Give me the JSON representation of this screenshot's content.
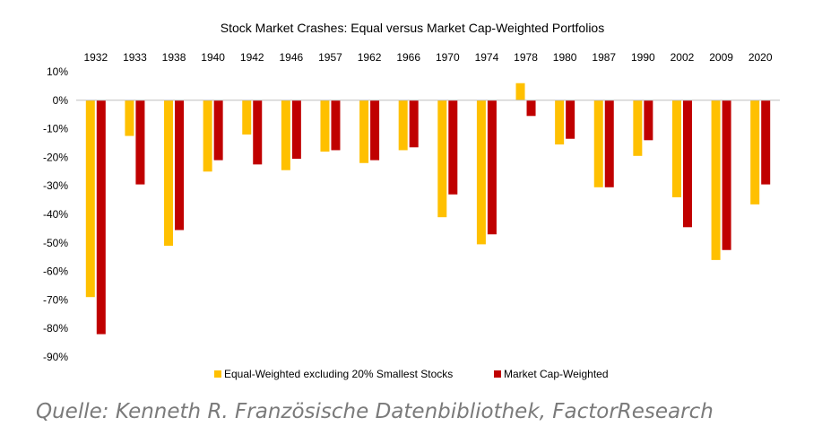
{
  "chart_data": {
    "type": "bar",
    "title": "Stock Market Crashes: Equal versus Market Cap-Weighted Portfolios",
    "categories": [
      "1932",
      "1933",
      "1938",
      "1940",
      "1942",
      "1946",
      "1957",
      "1962",
      "1966",
      "1970",
      "1974",
      "1978",
      "1980",
      "1987",
      "1990",
      "2002",
      "2009",
      "2020"
    ],
    "series": [
      {
        "name": "Equal-Weighted excluding 20% Smallest Stocks",
        "color": "#FFC000",
        "values": [
          -69,
          -12.5,
          -51,
          -25,
          -12,
          -24.5,
          -18,
          -22,
          -17.5,
          -41,
          -50.5,
          6,
          -15.5,
          -30.5,
          -19.5,
          -34,
          -56,
          -36.5
        ]
      },
      {
        "name": "Market Cap-Weighted",
        "color": "#C00000",
        "values": [
          -82,
          -29.5,
          -45.5,
          -21,
          -22.5,
          -20.5,
          -17.5,
          -21,
          -16.5,
          -33,
          -47,
          -5.5,
          -13.5,
          -30.5,
          -14,
          -44.5,
          -52.5,
          -29.5
        ]
      }
    ],
    "ylim": [
      -90,
      10
    ],
    "yticks": [
      "10%",
      "0%",
      "-10%",
      "-20%",
      "-30%",
      "-40%",
      "-50%",
      "-60%",
      "-70%",
      "-80%",
      "-90%"
    ],
    "xlabel": "",
    "ylabel": "",
    "legend_position": "bottom-center",
    "grid": false
  },
  "caption": "Quelle: Kenneth R. Französische Datenbibliothek, FactorResearch"
}
